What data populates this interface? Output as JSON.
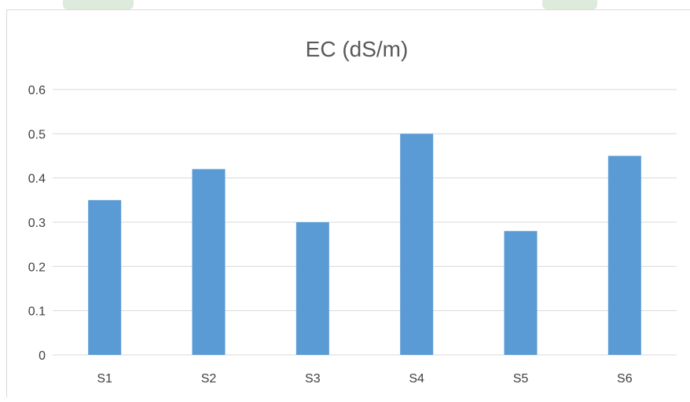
{
  "chart_data": {
    "type": "bar",
    "title": "EC (dS/m)",
    "xlabel": "",
    "ylabel": "",
    "categories": [
      "S1",
      "S2",
      "S3",
      "S4",
      "S5",
      "S6"
    ],
    "values": [
      0.35,
      0.42,
      0.3,
      0.5,
      0.28,
      0.45
    ],
    "ylim": [
      0,
      0.6
    ],
    "yticks": [
      "0",
      "0.1",
      "0.2",
      "0.3",
      "0.4",
      "0.5",
      "0.6"
    ],
    "grid": true,
    "legend": "none",
    "bar_color": "#5b9bd5",
    "grid_color": "#d9d9d9",
    "text_color": "#404040"
  }
}
